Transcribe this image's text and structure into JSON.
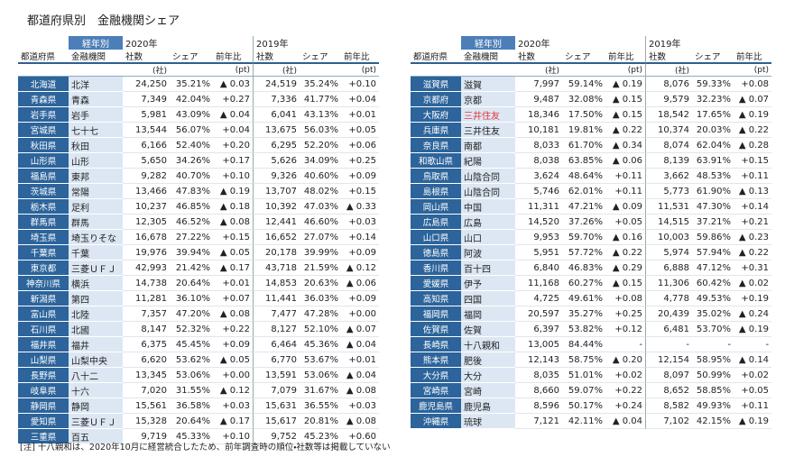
{
  "title": "都道府県別　金融機関シェア",
  "tables": [
    {
      "era_label": "経年別",
      "years": [
        "2020年",
        "2019年"
      ],
      "columns": [
        "都道府県",
        "金融機関",
        "社数",
        "シェア",
        "前年比",
        "社数",
        "シェア",
        "前年比"
      ],
      "units": [
        "(社)",
        "(pt)",
        "(社)",
        "(pt)"
      ],
      "rows": [
        [
          "北海道",
          "北洋",
          "24,250",
          "35.21%",
          "▲ 0.03",
          "24,519",
          "35.24%",
          "+0.10"
        ],
        [
          "青森県",
          "青森",
          "7,349",
          "42.04%",
          "+0.27",
          "7,336",
          "41.77%",
          "+0.04"
        ],
        [
          "岩手県",
          "岩手",
          "5,981",
          "43.09%",
          "▲ 0.04",
          "6,041",
          "43.13%",
          "+0.01"
        ],
        [
          "宮城県",
          "七十七",
          "13,544",
          "56.07%",
          "+0.04",
          "13,675",
          "56.03%",
          "+0.05"
        ],
        [
          "秋田県",
          "秋田",
          "6,166",
          "52.40%",
          "+0.20",
          "6,295",
          "52.20%",
          "+0.06"
        ],
        [
          "山形県",
          "山形",
          "5,650",
          "34.26%",
          "+0.17",
          "5,626",
          "34.09%",
          "+0.25"
        ],
        [
          "福島県",
          "東邦",
          "9,282",
          "40.70%",
          "+0.10",
          "9,326",
          "40.60%",
          "+0.09"
        ],
        [
          "茨城県",
          "常陽",
          "13,466",
          "47.83%",
          "▲ 0.19",
          "13,707",
          "48.02%",
          "+0.15"
        ],
        [
          "栃木県",
          "足利",
          "10,237",
          "46.85%",
          "▲ 0.18",
          "10,392",
          "47.03%",
          "▲ 0.33"
        ],
        [
          "群馬県",
          "群馬",
          "12,305",
          "46.52%",
          "▲ 0.08",
          "12,441",
          "46.60%",
          "+0.03"
        ],
        [
          "埼玉県",
          "埼玉りそな",
          "16,678",
          "27.22%",
          "+0.15",
          "16,652",
          "27.07%",
          "+0.14"
        ],
        [
          "千葉県",
          "千葉",
          "19,976",
          "39.94%",
          "▲ 0.05",
          "20,178",
          "39.99%",
          "+0.09"
        ],
        [
          "東京都",
          "三菱ＵＦＪ",
          "42,993",
          "21.42%",
          "▲ 0.17",
          "43,718",
          "21.59%",
          "▲ 0.12"
        ],
        [
          "神奈川県",
          "横浜",
          "14,738",
          "20.64%",
          "+0.01",
          "14,853",
          "20.63%",
          "▲ 0.06"
        ],
        [
          "新潟県",
          "第四",
          "11,281",
          "36.10%",
          "+0.07",
          "11,441",
          "36.03%",
          "+0.09"
        ],
        [
          "富山県",
          "北陸",
          "7,357",
          "47.20%",
          "▲ 0.08",
          "7,477",
          "47.28%",
          "+0.00"
        ],
        [
          "石川県",
          "北國",
          "8,147",
          "52.32%",
          "+0.22",
          "8,127",
          "52.10%",
          "▲ 0.07"
        ],
        [
          "福井県",
          "福井",
          "6,375",
          "45.45%",
          "+0.09",
          "6,464",
          "45.36%",
          "▲ 0.04"
        ],
        [
          "山梨県",
          "山梨中央",
          "6,620",
          "53.62%",
          "▲ 0.05",
          "6,770",
          "53.67%",
          "+0.01"
        ],
        [
          "長野県",
          "八十二",
          "13,345",
          "53.06%",
          "+0.00",
          "13,591",
          "53.06%",
          "▲ 0.04"
        ],
        [
          "岐阜県",
          "十六",
          "7,020",
          "31.55%",
          "▲ 0.12",
          "7,079",
          "31.67%",
          "▲ 0.08"
        ],
        [
          "静岡県",
          "静岡",
          "15,561",
          "36.58%",
          "+0.03",
          "15,631",
          "36.55%",
          "+0.03"
        ],
        [
          "愛知県",
          "三菱ＵＦＪ",
          "15,328",
          "20.64%",
          "▲ 0.17",
          "15,617",
          "20.81%",
          "▲ 0.08"
        ],
        [
          "三重県",
          "百五",
          "9,719",
          "45.33%",
          "+0.10",
          "9,752",
          "45.23%",
          "+0.60"
        ]
      ]
    },
    {
      "era_label": "経年別",
      "years": [
        "2020年",
        "2019年"
      ],
      "columns": [
        "都道府県",
        "金融機関",
        "社数",
        "シェア",
        "前年比",
        "社数",
        "シェア",
        "前年比"
      ],
      "units": [
        "(社)",
        "(pt)",
        "(社)",
        "(pt)"
      ],
      "highlight": {
        "row": 2,
        "col": 1,
        "color": "#e8363b"
      },
      "rows": [
        [
          "滋賀県",
          "滋賀",
          "7,997",
          "59.14%",
          "▲ 0.19",
          "8,076",
          "59.33%",
          "+0.08"
        ],
        [
          "京都府",
          "京都",
          "9,487",
          "32.08%",
          "▲ 0.15",
          "9,579",
          "32.23%",
          "▲ 0.07"
        ],
        [
          "大阪府",
          "三井住友",
          "18,346",
          "17.50%",
          "▲ 0.15",
          "18,542",
          "17.65%",
          "▲ 0.19"
        ],
        [
          "兵庫県",
          "三井住友",
          "10,181",
          "19.81%",
          "▲ 0.22",
          "10,374",
          "20.03%",
          "▲ 0.22"
        ],
        [
          "奈良県",
          "南都",
          "8,033",
          "61.70%",
          "▲ 0.34",
          "8,074",
          "62.04%",
          "▲ 0.28"
        ],
        [
          "和歌山県",
          "紀陽",
          "8,038",
          "63.85%",
          "▲ 0.06",
          "8,139",
          "63.91%",
          "+0.15"
        ],
        [
          "鳥取県",
          "山陰合同",
          "3,624",
          "48.64%",
          "+0.11",
          "3,662",
          "48.53%",
          "+0.11"
        ],
        [
          "島根県",
          "山陰合同",
          "5,746",
          "62.01%",
          "+0.11",
          "5,773",
          "61.90%",
          "▲ 0.13"
        ],
        [
          "岡山県",
          "中国",
          "11,311",
          "47.21%",
          "▲ 0.09",
          "11,531",
          "47.30%",
          "+0.14"
        ],
        [
          "広島県",
          "広島",
          "14,520",
          "37.26%",
          "+0.05",
          "14,515",
          "37.21%",
          "+0.21"
        ],
        [
          "山口県",
          "山口",
          "9,953",
          "59.70%",
          "▲ 0.16",
          "10,003",
          "59.86%",
          "▲ 0.23"
        ],
        [
          "徳島県",
          "阿波",
          "5,951",
          "57.72%",
          "▲ 0.22",
          "5,974",
          "57.94%",
          "▲ 0.22"
        ],
        [
          "香川県",
          "百十四",
          "6,840",
          "46.83%",
          "▲ 0.29",
          "6,888",
          "47.12%",
          "+0.31"
        ],
        [
          "愛媛県",
          "伊予",
          "11,168",
          "60.27%",
          "▲ 0.15",
          "11,306",
          "60.42%",
          "▲ 0.02"
        ],
        [
          "高知県",
          "四国",
          "4,725",
          "49.61%",
          "+0.08",
          "4,778",
          "49.53%",
          "+0.19"
        ],
        [
          "福岡県",
          "福岡",
          "20,597",
          "35.27%",
          "+0.25",
          "20,439",
          "35.02%",
          "▲ 0.24"
        ],
        [
          "佐賀県",
          "佐賀",
          "6,397",
          "53.82%",
          "+0.12",
          "6,481",
          "53.70%",
          "▲ 0.19"
        ],
        [
          "長崎県",
          "十八親和",
          "13,005",
          "84.44%",
          "-",
          "-",
          "-",
          "-"
        ],
        [
          "熊本県",
          "肥後",
          "12,143",
          "58.75%",
          "▲ 0.20",
          "12,154",
          "58.95%",
          "▲ 0.14"
        ],
        [
          "大分県",
          "大分",
          "8,035",
          "51.01%",
          "+0.02",
          "8,097",
          "50.99%",
          "+0.02"
        ],
        [
          "宮崎県",
          "宮崎",
          "8,660",
          "59.07%",
          "+0.22",
          "8,652",
          "58.85%",
          "+0.05"
        ],
        [
          "鹿児島県",
          "鹿児島",
          "8,596",
          "50.17%",
          "+0.24",
          "8,582",
          "49.93%",
          "+0.11"
        ],
        [
          "沖縄県",
          "琉球",
          "7,121",
          "42.11%",
          "▲ 0.04",
          "7,102",
          "42.15%",
          "▲ 0.19"
        ]
      ]
    }
  ],
  "footnote": "[注] 十八親和は、2020年10月に経営統合したため、前年調査時の順位・社数等は掲載していない"
}
